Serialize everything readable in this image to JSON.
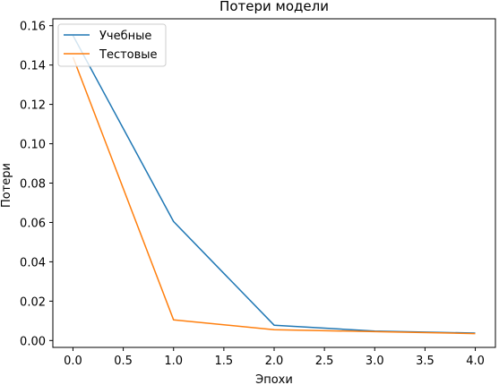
{
  "chart_data": {
    "type": "line",
    "title": "Потери модели",
    "xlabel": "Эпохи",
    "ylabel": "Потери",
    "xlim": [
      -0.2,
      4.2
    ],
    "ylim": [
      -0.0035,
      0.1635
    ],
    "x_ticks": [
      0.0,
      0.5,
      1.0,
      1.5,
      2.0,
      2.5,
      3.0,
      3.5,
      4.0
    ],
    "x_tick_labels": [
      "0.0",
      "0.5",
      "1.0",
      "1.5",
      "2.0",
      "2.5",
      "3.0",
      "3.5",
      "4.0"
    ],
    "y_ticks": [
      0.0,
      0.02,
      0.04,
      0.06,
      0.08,
      0.1,
      0.12,
      0.14,
      0.16
    ],
    "y_tick_labels": [
      "0.00",
      "0.02",
      "0.04",
      "0.06",
      "0.08",
      "0.10",
      "0.12",
      "0.14",
      "0.16"
    ],
    "grid": false,
    "legend_position": "top-left",
    "x": [
      0,
      1,
      2,
      3,
      4
    ],
    "series": [
      {
        "name": "Учебные",
        "color": "#1f77b4",
        "values": [
          0.155,
          0.0605,
          0.0078,
          0.0048,
          0.0038
        ]
      },
      {
        "name": "Тестовые",
        "color": "#ff7f0e",
        "values": [
          0.144,
          0.0105,
          0.0055,
          0.0045,
          0.0035
        ]
      }
    ]
  }
}
